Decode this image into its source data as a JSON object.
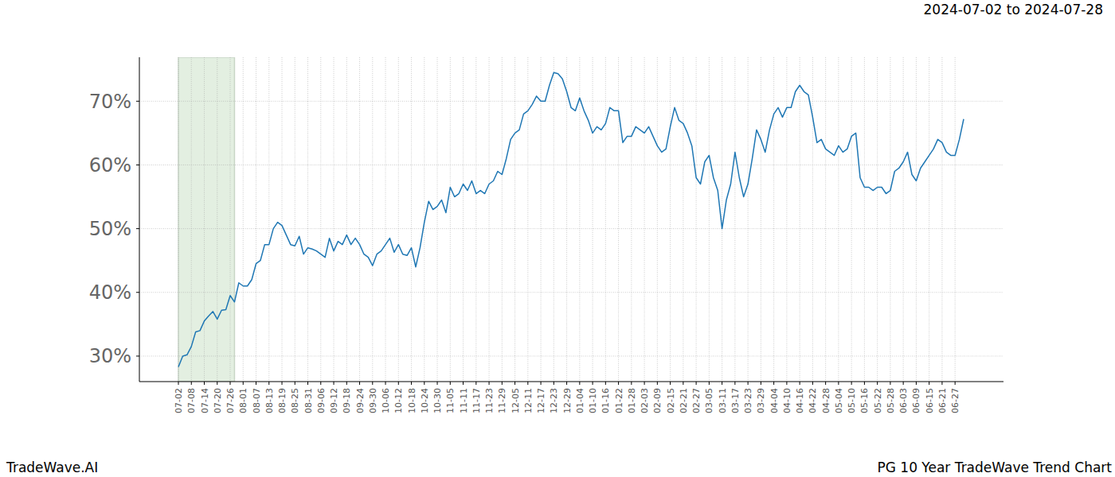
{
  "chart_data": {
    "type": "line",
    "title": "PG 10 Year TradeWave Trend Chart",
    "subtitle": "2024-07-02 to 2024-07-28",
    "brand": "TradeWave.AI",
    "color": "#1f77b4",
    "grid": true,
    "highlight_range": [
      0,
      13
    ],
    "ylim": [
      26.0,
      76.9
    ],
    "yticks": [
      {
        "value": 30,
        "label": "30%"
      },
      {
        "value": 40,
        "label": "40%"
      },
      {
        "value": 50,
        "label": "50%"
      },
      {
        "value": 60,
        "label": "60%"
      },
      {
        "value": 70,
        "label": "70%"
      }
    ],
    "categories": [
      "07-02",
      null,
      null,
      "07-08",
      null,
      null,
      "07-14",
      null,
      null,
      "07-20",
      null,
      null,
      "07-26",
      null,
      null,
      "08-01",
      null,
      null,
      "08-07",
      null,
      null,
      "08-13",
      null,
      null,
      "08-19",
      null,
      null,
      "08-25",
      null,
      null,
      "08-31",
      null,
      null,
      "09-06",
      null,
      null,
      "09-12",
      null,
      null,
      "09-18",
      null,
      null,
      "09-24",
      null,
      null,
      "09-30",
      null,
      null,
      "10-06",
      null,
      null,
      "10-12",
      null,
      null,
      "10-18",
      null,
      null,
      "10-24",
      null,
      null,
      "10-30",
      null,
      null,
      "11-05",
      null,
      null,
      "11-11",
      null,
      null,
      "11-17",
      null,
      null,
      "11-23",
      null,
      null,
      "11-29",
      null,
      null,
      "12-05",
      null,
      null,
      "12-11",
      null,
      null,
      "12-17",
      null,
      null,
      "12-23",
      null,
      null,
      "12-29",
      null,
      null,
      "01-04",
      null,
      null,
      "01-10",
      null,
      null,
      "01-16",
      null,
      null,
      "01-22",
      null,
      null,
      "01-28",
      null,
      null,
      "02-03",
      null,
      null,
      "02-09",
      null,
      null,
      "02-15",
      null,
      null,
      "02-21",
      null,
      null,
      "02-27",
      null,
      null,
      "03-05",
      null,
      null,
      "03-11",
      null,
      null,
      "03-17",
      null,
      null,
      "03-23",
      null,
      null,
      "03-29",
      null,
      null,
      "04-04",
      null,
      null,
      "04-10",
      null,
      null,
      "04-16",
      null,
      null,
      "04-22",
      null,
      null,
      "04-28",
      null,
      null,
      "05-04",
      null,
      null,
      "05-10",
      null,
      null,
      "05-16",
      null,
      null,
      "05-22",
      null,
      null,
      "05-28",
      null,
      null,
      "06-03",
      null,
      null,
      "06-09",
      null,
      null,
      "06-15",
      null,
      null,
      "06-21",
      null,
      null,
      "06-27",
      null,
      null
    ],
    "values": [
      28.3,
      30,
      30.2,
      31.5,
      33.8,
      34,
      35.5,
      36.3,
      37,
      35.8,
      37.2,
      37.3,
      39.5,
      38.5,
      41.5,
      41,
      41,
      42,
      44.5,
      45,
      47.5,
      47.5,
      50,
      51,
      50.5,
      49,
      47.5,
      47.3,
      48.8,
      46,
      47,
      46.8,
      46.5,
      46,
      45.5,
      48.5,
      46.5,
      48,
      47.5,
      49,
      47.5,
      48.5,
      47.5,
      46,
      45.5,
      44.2,
      46,
      46.5,
      47.5,
      48.5,
      46.3,
      47.5,
      46,
      45.8,
      47,
      44,
      47,
      51,
      54.3,
      53,
      53.5,
      54.5,
      52.5,
      56.5,
      55,
      55.5,
      57,
      56,
      57.5,
      55.5,
      56,
      55.5,
      57,
      57.5,
      59,
      58.5,
      61,
      64,
      65,
      65.5,
      68,
      68.5,
      69.5,
      70.8,
      70,
      70,
      72.5,
      74.5,
      74.3,
      73.5,
      71.5,
      69,
      68.5,
      70.5,
      68.5,
      67,
      65,
      66,
      65.5,
      66.5,
      69,
      68.5,
      68.5,
      63.5,
      64.5,
      64.5,
      66,
      65.5,
      65,
      66,
      64.5,
      63,
      62,
      62.5,
      66,
      69,
      67,
      66.5,
      65,
      63,
      58,
      57,
      60.5,
      61.5,
      58,
      56,
      50,
      54.5,
      57,
      62,
      58,
      55,
      57,
      61,
      65.5,
      64,
      62,
      65.5,
      68,
      69,
      67.5,
      69,
      69,
      71.5,
      72.5,
      71.5,
      71,
      67.5,
      63.5,
      64,
      62.5,
      62,
      61.5,
      63,
      62,
      62.5,
      64.5,
      65,
      58,
      56.5,
      56.5,
      56,
      56.5,
      56.5,
      55.5,
      56,
      59,
      59.5,
      60.5,
      62,
      58.5,
      57.5,
      59.5,
      60.5,
      61.5,
      62.5,
      64,
      63.5,
      62,
      61.5,
      61.5,
      64,
      67.2
    ]
  }
}
